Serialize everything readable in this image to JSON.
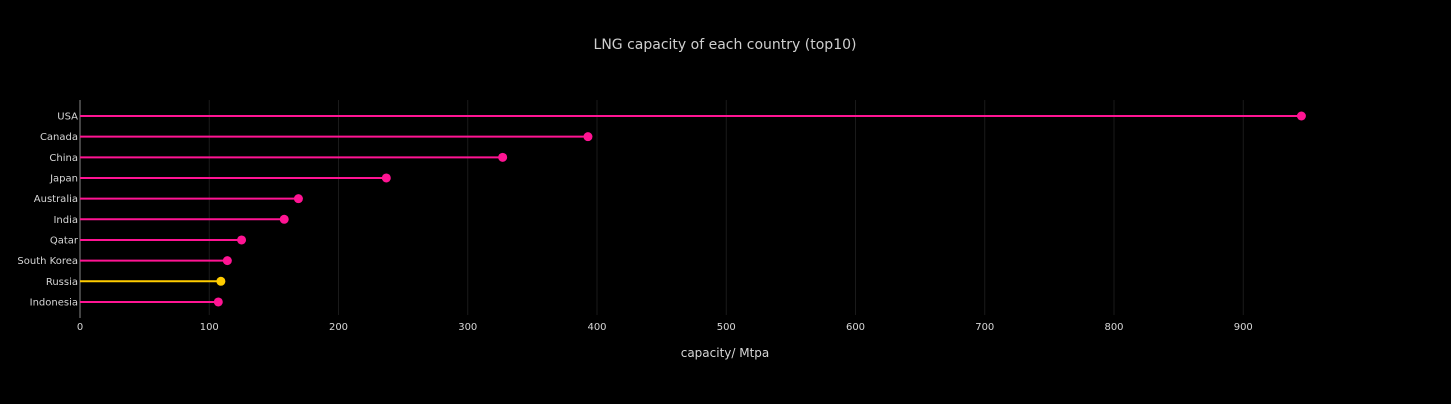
{
  "chart_data": {
    "type": "lollipop",
    "orientation": "horizontal",
    "title": "LNG capacity of each country (top10)",
    "xlabel": "capacity/ Mtpa",
    "ylabel": "",
    "xlim": [
      0,
      945
    ],
    "x_ticks": [
      0,
      100,
      200,
      300,
      400,
      500,
      600,
      700,
      800,
      900
    ],
    "grid": true,
    "categories": [
      "USA",
      "Canada",
      "China",
      "Japan",
      "Australia",
      "India",
      "Qatar",
      "South Korea",
      "Russia",
      "Indonesia"
    ],
    "values": [
      945,
      393,
      327,
      237,
      169,
      158,
      125,
      114,
      109,
      107
    ],
    "colors": [
      "#ff1493",
      "#ff1493",
      "#ff1493",
      "#ff1493",
      "#ff1493",
      "#ff1493",
      "#ff1493",
      "#ff1493",
      "#ffcc00",
      "#ff1493"
    ]
  },
  "style": {
    "background": "#000000",
    "text_color": "#d6d6d6",
    "title_color": "#cfcfcf",
    "axis_line_color": "#444444",
    "grid_color": "#1a1a1a"
  }
}
